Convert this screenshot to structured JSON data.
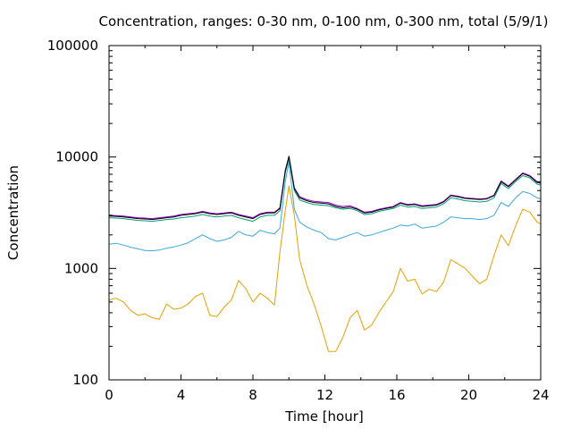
{
  "chart_data": {
    "type": "line",
    "title": "Concentration, ranges: 0-30 nm, 0-100 nm, 0-300 nm, total (5/9/1)",
    "xlabel": "Time [hour]",
    "ylabel": "Concentration",
    "xlim": [
      0,
      24
    ],
    "ylim": [
      100,
      100000
    ],
    "yscale": "log",
    "grid": false,
    "legend": "none",
    "x_ticks": [
      0,
      4,
      8,
      12,
      16,
      20,
      24
    ],
    "x_tick_labels": [
      "0",
      "4",
      "8",
      "12",
      "16",
      "20",
      "24"
    ],
    "y_ticks": [
      100,
      1000,
      10000,
      100000
    ],
    "y_tick_labels": [
      "100",
      "1000",
      "10000",
      "100000"
    ],
    "series": [
      {
        "color": "#e6a000",
        "x": [
          0,
          0.4,
          0.8,
          1.2,
          1.6,
          2.0,
          2.4,
          2.8,
          3.2,
          3.6,
          4.0,
          4.4,
          4.8,
          5.2,
          5.6,
          6.0,
          6.4,
          6.8,
          7.2,
          7.6,
          8.0,
          8.4,
          8.8,
          9.2,
          9.5,
          9.8,
          10.0,
          10.3,
          10.6,
          11.0,
          11.4,
          11.8,
          12.2,
          12.6,
          13.0,
          13.4,
          13.8,
          14.2,
          14.6,
          15.0,
          15.4,
          15.8,
          16.2,
          16.6,
          17.0,
          17.4,
          17.8,
          18.2,
          18.6,
          19.0,
          19.4,
          19.8,
          20.2,
          20.6,
          21.0,
          21.4,
          21.8,
          22.2,
          22.6,
          23.0,
          23.4,
          23.8,
          24.0
        ],
        "y": [
          520,
          540,
          500,
          420,
          380,
          390,
          360,
          350,
          480,
          430,
          440,
          480,
          560,
          600,
          380,
          370,
          450,
          520,
          780,
          660,
          500,
          600,
          540,
          470,
          1400,
          3300,
          5500,
          3000,
          1200,
          700,
          480,
          300,
          180,
          180,
          240,
          360,
          420,
          280,
          310,
          400,
          500,
          620,
          1000,
          770,
          800,
          590,
          650,
          620,
          750,
          1200,
          1100,
          1000,
          850,
          730,
          800,
          1300,
          2000,
          1600,
          2400,
          3400,
          3200,
          2600,
          2500
        ]
      },
      {
        "color": "#3aa8d8",
        "x": [
          0,
          0.4,
          0.8,
          1.2,
          1.6,
          2.0,
          2.4,
          2.8,
          3.2,
          3.6,
          4.0,
          4.4,
          4.8,
          5.2,
          5.6,
          6.0,
          6.4,
          6.8,
          7.2,
          7.6,
          8.0,
          8.4,
          8.8,
          9.2,
          9.5,
          9.8,
          10.0,
          10.3,
          10.6,
          11.0,
          11.4,
          11.8,
          12.2,
          12.6,
          13.0,
          13.4,
          13.8,
          14.2,
          14.6,
          15.0,
          15.4,
          15.8,
          16.2,
          16.6,
          17.0,
          17.4,
          17.8,
          18.2,
          18.6,
          19.0,
          19.4,
          19.8,
          20.2,
          20.6,
          21.0,
          21.4,
          21.8,
          22.2,
          22.6,
          23.0,
          23.4,
          23.8,
          24.0
        ],
        "y": [
          1650,
          1680,
          1620,
          1550,
          1500,
          1450,
          1440,
          1460,
          1520,
          1560,
          1620,
          1700,
          1850,
          2000,
          1850,
          1750,
          1800,
          1900,
          2150,
          2000,
          1950,
          2200,
          2100,
          2050,
          2300,
          6000,
          9000,
          3400,
          2600,
          2350,
          2200,
          2100,
          1850,
          1800,
          1900,
          2000,
          2100,
          1950,
          2000,
          2100,
          2200,
          2300,
          2450,
          2400,
          2500,
          2300,
          2350,
          2400,
          2600,
          2900,
          2850,
          2800,
          2800,
          2750,
          2800,
          3000,
          3900,
          3600,
          4300,
          4900,
          4700,
          4300,
          4200
        ]
      },
      {
        "color": "#009e73",
        "x": [
          0,
          0.4,
          0.8,
          1.2,
          1.6,
          2.0,
          2.4,
          2.8,
          3.2,
          3.6,
          4.0,
          4.4,
          4.8,
          5.2,
          5.6,
          6.0,
          6.4,
          6.8,
          7.2,
          7.6,
          8.0,
          8.4,
          8.8,
          9.2,
          9.5,
          9.8,
          10.0,
          10.3,
          10.6,
          11.0,
          11.4,
          11.8,
          12.2,
          12.6,
          13.0,
          13.4,
          13.8,
          14.2,
          14.6,
          15.0,
          15.4,
          15.8,
          16.2,
          16.6,
          17.0,
          17.4,
          17.8,
          18.2,
          18.6,
          19.0,
          19.4,
          19.8,
          20.2,
          20.6,
          21.0,
          21.4,
          21.8,
          22.2,
          22.6,
          23.0,
          23.4,
          23.8,
          24.0
        ],
        "y": [
          2850,
          2830,
          2800,
          2750,
          2700,
          2680,
          2650,
          2700,
          2750,
          2780,
          2850,
          2900,
          2950,
          3050,
          2950,
          2900,
          2950,
          3000,
          2850,
          2750,
          2650,
          2900,
          3000,
          3000,
          3300,
          7200,
          9700,
          5000,
          4100,
          3900,
          3750,
          3700,
          3650,
          3500,
          3400,
          3450,
          3300,
          3050,
          3100,
          3250,
          3350,
          3450,
          3700,
          3550,
          3600,
          3450,
          3500,
          3550,
          3800,
          4300,
          4200,
          4050,
          4000,
          3950,
          4000,
          4300,
          5800,
          5200,
          6000,
          6800,
          6500,
          5700,
          5600
        ]
      },
      {
        "color": "#9400d3",
        "x": [
          0,
          0.4,
          0.8,
          1.2,
          1.6,
          2.0,
          2.4,
          2.8,
          3.2,
          3.6,
          4.0,
          4.4,
          4.8,
          5.2,
          5.6,
          6.0,
          6.4,
          6.8,
          7.2,
          7.6,
          8.0,
          8.4,
          8.8,
          9.2,
          9.5,
          9.8,
          10.0,
          10.3,
          10.6,
          11.0,
          11.4,
          11.8,
          12.2,
          12.6,
          13.0,
          13.4,
          13.8,
          14.2,
          14.6,
          15.0,
          15.4,
          15.8,
          16.2,
          16.6,
          17.0,
          17.4,
          17.8,
          18.2,
          18.6,
          19.0,
          19.4,
          19.8,
          20.2,
          20.6,
          21.0,
          21.4,
          21.8,
          22.2,
          22.6,
          23.0,
          23.4,
          23.8,
          24.0
        ],
        "y": [
          3000,
          2980,
          2950,
          2900,
          2850,
          2830,
          2800,
          2850,
          2900,
          2950,
          3050,
          3100,
          3150,
          3250,
          3150,
          3100,
          3150,
          3200,
          3050,
          2950,
          2850,
          3100,
          3200,
          3200,
          3500,
          7600,
          10200,
          5300,
          4400,
          4150,
          4000,
          3950,
          3900,
          3700,
          3600,
          3650,
          3450,
          3200,
          3250,
          3400,
          3500,
          3600,
          3900,
          3750,
          3800,
          3650,
          3700,
          3750,
          4000,
          4550,
          4450,
          4300,
          4250,
          4200,
          4250,
          4550,
          6100,
          5500,
          6300,
          7200,
          6800,
          6000,
          5900
        ]
      },
      {
        "color": "#000000",
        "x": [
          0,
          0.4,
          0.8,
          1.2,
          1.6,
          2.0,
          2.4,
          2.8,
          3.2,
          3.6,
          4.0,
          4.4,
          4.8,
          5.2,
          5.6,
          6.0,
          6.4,
          6.8,
          7.2,
          7.6,
          8.0,
          8.4,
          8.8,
          9.2,
          9.5,
          9.8,
          10.0,
          10.3,
          10.6,
          11.0,
          11.4,
          11.8,
          12.2,
          12.6,
          13.0,
          13.4,
          13.8,
          14.2,
          14.6,
          15.0,
          15.4,
          15.8,
          16.2,
          16.6,
          17.0,
          17.4,
          17.8,
          18.2,
          18.6,
          19.0,
          19.4,
          19.8,
          20.2,
          20.6,
          21.0,
          21.4,
          21.8,
          22.2,
          22.6,
          23.0,
          23.4,
          23.8,
          24.0
        ],
        "y": [
          2950,
          2930,
          2900,
          2850,
          2800,
          2780,
          2750,
          2800,
          2850,
          2900,
          3000,
          3050,
          3100,
          3200,
          3100,
          3050,
          3100,
          3150,
          3000,
          2900,
          2800,
          3050,
          3150,
          3150,
          3450,
          7500,
          10100,
          5200,
          4300,
          4050,
          3900,
          3850,
          3800,
          3600,
          3500,
          3550,
          3400,
          3150,
          3200,
          3350,
          3450,
          3550,
          3850,
          3700,
          3750,
          3600,
          3650,
          3700,
          3950,
          4500,
          4400,
          4250,
          4200,
          4150,
          4200,
          4500,
          6000,
          5400,
          6200,
          7100,
          6700,
          5900,
          5800
        ]
      }
    ]
  }
}
